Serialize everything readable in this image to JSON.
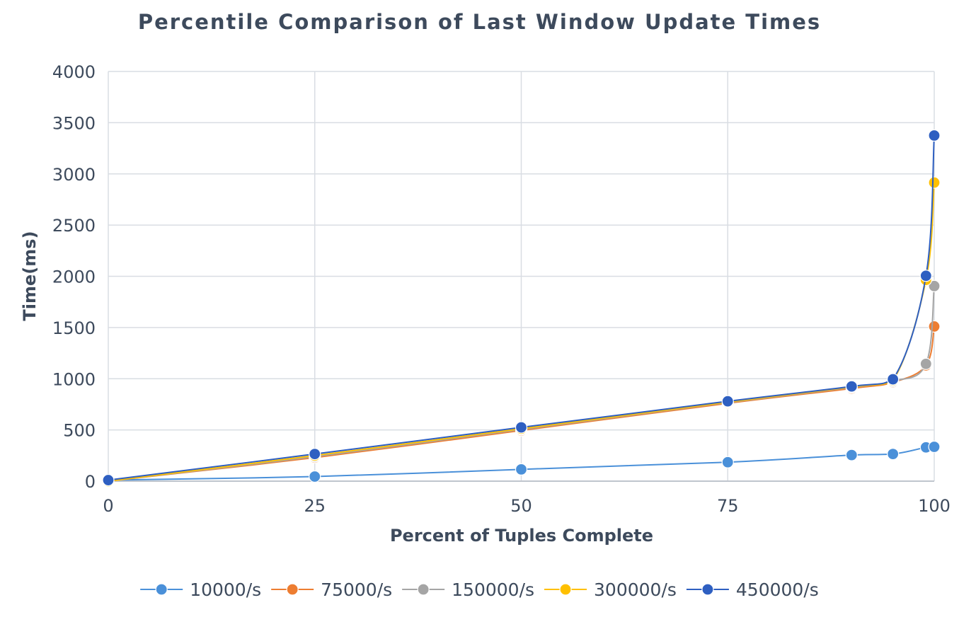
{
  "chart_data": {
    "type": "line",
    "title": "Percentile Comparison of Last Window Update Times",
    "xlabel": "Percent of Tuples Complete",
    "ylabel": "Time(ms)",
    "xlim": [
      0,
      100
    ],
    "ylim": [
      0,
      4000
    ],
    "xticks": [
      0,
      25,
      50,
      75,
      100
    ],
    "yticks": [
      0,
      500,
      1000,
      1500,
      2000,
      2500,
      3000,
      3500,
      4000
    ],
    "grid": true,
    "legend_position": "bottom",
    "x": [
      0,
      25,
      50,
      75,
      90,
      95,
      99,
      100
    ],
    "series": [
      {
        "name": "10000/s",
        "color": "#4a90d9",
        "values": [
          10,
          45,
          115,
          185,
          255,
          265,
          330,
          335
        ]
      },
      {
        "name": "75000/s",
        "color": "#ed7d31",
        "values": [
          0,
          230,
          495,
          760,
          905,
          965,
          1130,
          1510
        ]
      },
      {
        "name": "150000/s",
        "color": "#a5a5a5",
        "values": [
          0,
          240,
          505,
          768,
          915,
          975,
          1145,
          1905
        ]
      },
      {
        "name": "300000/s",
        "color": "#ffc000",
        "values": [
          0,
          250,
          512,
          772,
          920,
          985,
          1965,
          2915
        ]
      },
      {
        "name": "450000/s",
        "color": "#2e5fc1",
        "values": [
          10,
          265,
          525,
          780,
          925,
          995,
          2005,
          3375
        ]
      }
    ]
  }
}
